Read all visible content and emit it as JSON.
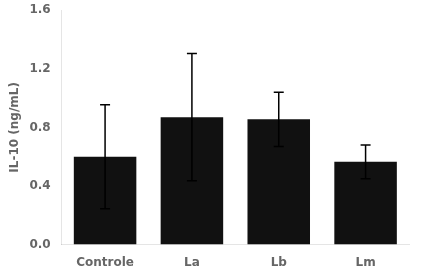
{
  "chart_data": {
    "type": "bar",
    "categories": [
      "Controle",
      "La",
      "Lb",
      "Lm"
    ],
    "values": [
      0.6,
      0.87,
      0.855,
      0.565
    ],
    "errors_upper": [
      0.355,
      0.435,
      0.185,
      0.115
    ],
    "errors_lower": [
      0.355,
      0.435,
      0.185,
      0.115
    ],
    "color": "#111111",
    "ylabel": "IL-10 (ng/mL)",
    "ylim": [
      0.0,
      1.6
    ],
    "yticks": [
      {
        "value": 0.0,
        "label": "0.0"
      },
      0.4,
      0.8,
      1.2,
      1.6
    ],
    "grid": false
  }
}
